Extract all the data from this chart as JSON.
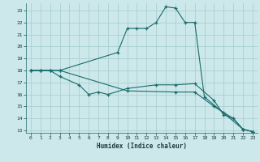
{
  "xlabel": "Humidex (Indice chaleur)",
  "bg_color": "#cce8ea",
  "grid_color": "#aacfd2",
  "line_color": "#1a6b6b",
  "xlim": [
    -0.5,
    23.5
  ],
  "ylim": [
    12.8,
    23.6
  ],
  "xticks": [
    0,
    1,
    2,
    3,
    4,
    5,
    6,
    7,
    8,
    9,
    10,
    11,
    12,
    13,
    14,
    15,
    16,
    17,
    18,
    19,
    20,
    21,
    22,
    23
  ],
  "yticks": [
    13,
    14,
    15,
    16,
    17,
    18,
    19,
    20,
    21,
    22,
    23
  ],
  "series1": [
    [
      0,
      18
    ],
    [
      1,
      18
    ],
    [
      2,
      18
    ],
    [
      3,
      18
    ],
    [
      9,
      19.5
    ],
    [
      10,
      21.5
    ],
    [
      11,
      21.5
    ],
    [
      12,
      21.5
    ],
    [
      13,
      22
    ],
    [
      14,
      23.3
    ],
    [
      15,
      23.2
    ],
    [
      16,
      22
    ],
    [
      17,
      22
    ],
    [
      18,
      15.8
    ],
    [
      22,
      13.1
    ],
    [
      23,
      12.9
    ]
  ],
  "series2": [
    [
      0,
      18
    ],
    [
      1,
      18
    ],
    [
      2,
      18
    ],
    [
      3,
      17.5
    ],
    [
      5,
      16.8
    ],
    [
      6,
      16
    ],
    [
      7,
      16.2
    ],
    [
      8,
      16
    ],
    [
      10,
      16.5
    ],
    [
      13,
      16.8
    ],
    [
      15,
      16.8
    ],
    [
      17,
      16.9
    ],
    [
      19,
      15.5
    ],
    [
      20,
      14.3
    ],
    [
      21,
      14.0
    ],
    [
      22,
      13.1
    ],
    [
      23,
      12.9
    ]
  ],
  "series3": [
    [
      0,
      18
    ],
    [
      1,
      18
    ],
    [
      2,
      18
    ],
    [
      3,
      18
    ],
    [
      10,
      16.3
    ],
    [
      15,
      16.2
    ],
    [
      17,
      16.2
    ],
    [
      19,
      15.0
    ],
    [
      20,
      14.5
    ],
    [
      21,
      14.0
    ],
    [
      22,
      13.1
    ],
    [
      23,
      12.9
    ]
  ]
}
